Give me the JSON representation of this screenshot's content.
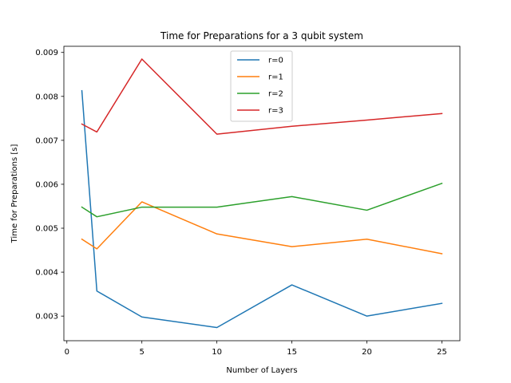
{
  "chart_data": {
    "type": "line",
    "title": "Time for Preparations for a 3 qubit system",
    "xlabel": "Number of Layers",
    "ylabel": "Time for Preparations [s]",
    "xlim": [
      -0.2,
      26.2
    ],
    "ylim": [
      0.00244,
      0.00914
    ],
    "xticks": [
      0,
      5,
      10,
      15,
      20,
      25
    ],
    "xtick_labels": [
      "0",
      "5",
      "10",
      "15",
      "20",
      "25"
    ],
    "yticks": [
      0.003,
      0.004,
      0.005,
      0.006,
      0.007,
      0.008,
      0.009
    ],
    "ytick_labels": [
      "0.003",
      "0.004",
      "0.005",
      "0.006",
      "0.007",
      "0.008",
      "0.009"
    ],
    "grid": false,
    "legend_position": "top-center",
    "x": [
      1,
      2,
      5,
      10,
      15,
      20,
      25
    ],
    "series": [
      {
        "name": "r=0",
        "color": "#1f77b4",
        "values": [
          0.00813,
          0.00357,
          0.00298,
          0.00274,
          0.00371,
          0.003,
          0.00329
        ]
      },
      {
        "name": "r=1",
        "color": "#ff7f0e",
        "values": [
          0.00475,
          0.00453,
          0.0056,
          0.00487,
          0.00458,
          0.00475,
          0.00442
        ]
      },
      {
        "name": "r=2",
        "color": "#2ca02c",
        "values": [
          0.00548,
          0.00526,
          0.00548,
          0.00548,
          0.00572,
          0.00541,
          0.00602
        ]
      },
      {
        "name": "r=3",
        "color": "#d62728",
        "values": [
          0.00737,
          0.00719,
          0.00885,
          0.00714,
          0.00732,
          0.00746,
          0.00761
        ]
      }
    ]
  }
}
